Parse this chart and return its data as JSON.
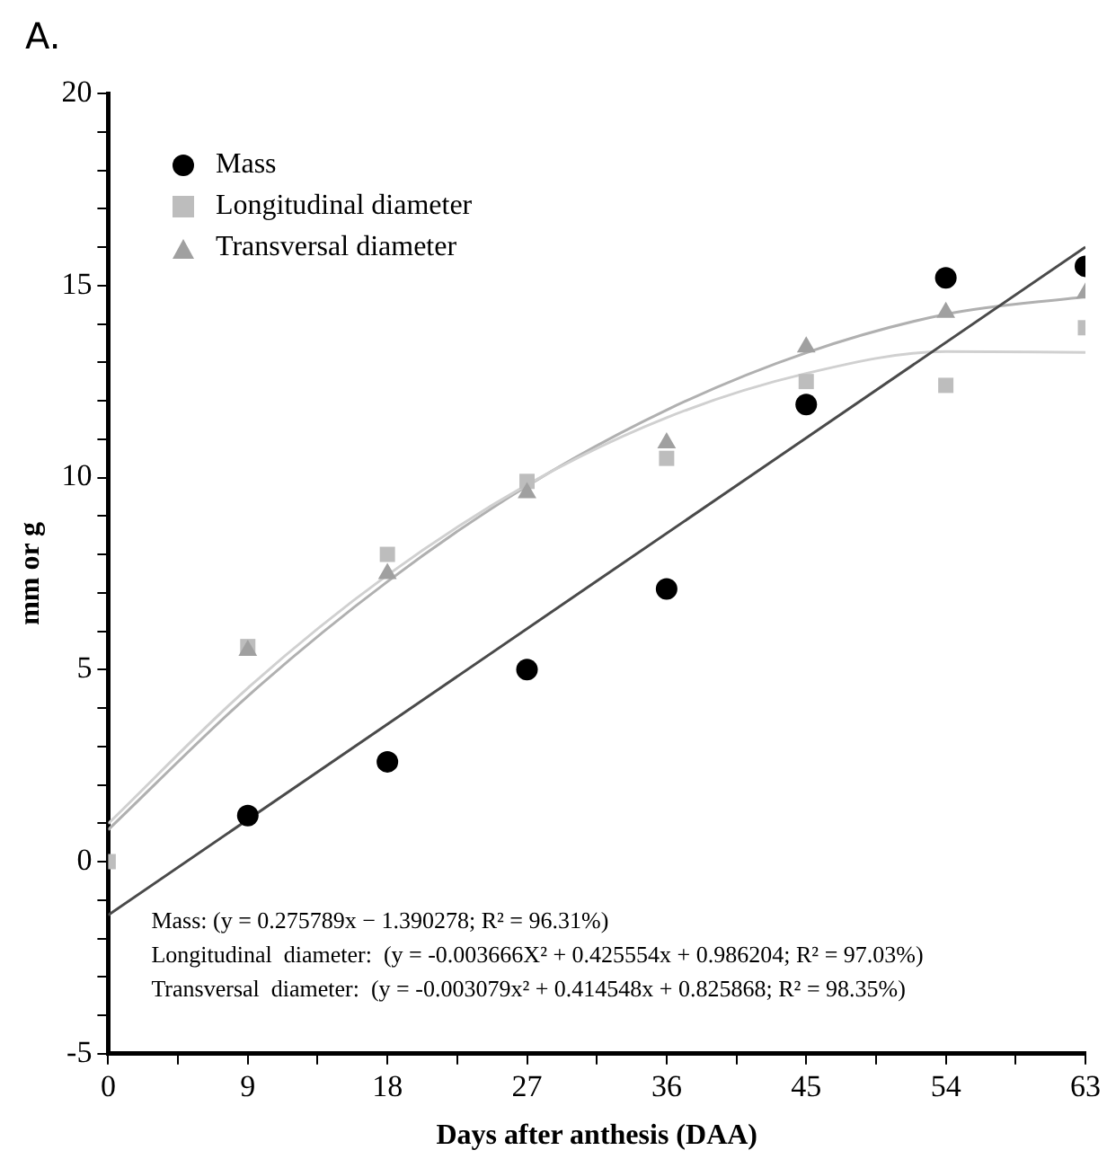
{
  "chart_data": {
    "type": "scatter",
    "title": "A.",
    "xlabel": "Days after anthesis (DAA)",
    "ylabel": "mm or g",
    "x": [
      0,
      9,
      18,
      27,
      36,
      45,
      54,
      63
    ],
    "series": [
      {
        "name": "Mass",
        "type": "scatter",
        "marker": "circle",
        "color": "#000000",
        "values": [
          null,
          1.2,
          2.6,
          5.0,
          7.1,
          11.9,
          15.2,
          15.5
        ]
      },
      {
        "name": "Longitudinal diameter",
        "type": "scatter",
        "marker": "square",
        "color": "#bdbdbd",
        "values": [
          0,
          5.6,
          8.0,
          9.9,
          10.5,
          12.5,
          12.4,
          13.9
        ]
      },
      {
        "name": "Transversal diameter",
        "type": "scatter",
        "marker": "triangle",
        "color": "#a0a0a0",
        "values": [
          null,
          5.5,
          7.5,
          9.6,
          10.9,
          13.4,
          14.3,
          14.8
        ]
      },
      {
        "type": "line",
        "marker": "none",
        "color": "#4a4a4a",
        "x": [
          0,
          63
        ],
        "values": [
          -1.39,
          16.0
        ]
      },
      {
        "type": "line",
        "marker": "none",
        "color": "#d0d0d0",
        "x": [
          0,
          9,
          18,
          27,
          36,
          45,
          54,
          63
        ],
        "values": [
          0.99,
          4.52,
          7.46,
          9.81,
          11.56,
          12.71,
          13.28,
          13.26
        ]
      },
      {
        "type": "line",
        "marker": "none",
        "color": "#b0b0b0",
        "x": [
          0,
          9,
          18,
          27,
          36,
          45,
          54,
          63
        ],
        "values": [
          0.83,
          4.31,
          7.29,
          9.78,
          11.76,
          13.25,
          14.25,
          14.71
        ]
      }
    ],
    "xlim": [
      0,
      63
    ],
    "xticks": [
      0,
      {
        "value": 4.5,
        "label": null
      },
      9,
      {
        "value": 13.5,
        "label": null
      },
      18,
      {
        "value": 22.5,
        "label": null
      },
      27,
      {
        "value": 31.5,
        "label": null
      },
      36,
      {
        "value": 40.5,
        "label": null
      },
      45,
      {
        "value": 49.5,
        "label": null
      },
      54,
      {
        "value": 58.5,
        "label": null
      },
      63
    ],
    "ylim": [
      -5,
      20
    ],
    "yticks": [
      -5,
      {
        "value": -4,
        "label": null
      },
      {
        "value": -3,
        "label": null
      },
      {
        "value": -2,
        "label": null
      },
      {
        "value": -1,
        "label": null
      },
      0,
      {
        "value": 1,
        "label": null
      },
      {
        "value": 2,
        "label": null
      },
      {
        "value": 3,
        "label": null
      },
      {
        "value": 4,
        "label": null
      },
      5,
      {
        "value": 6,
        "label": null
      },
      {
        "value": 7,
        "label": null
      },
      {
        "value": 8,
        "label": null
      },
      {
        "value": 9,
        "label": null
      },
      10,
      {
        "value": 11,
        "label": null
      },
      {
        "value": 12,
        "label": null
      },
      {
        "value": 13,
        "label": null
      },
      {
        "value": 14,
        "label": null
      },
      15,
      {
        "value": 16,
        "label": null
      },
      {
        "value": 17,
        "label": null
      },
      {
        "value": 18,
        "label": null
      },
      {
        "value": 19,
        "label": null
      },
      20
    ],
    "grid": false,
    "legend": "top left",
    "annotations": [
      "Mass: (y = 0.275789x − 1.390278; R² = 96.31%)",
      "Longitudinal  diameter:  (y = -0.003666X² + 0.425554x + 0.986204; R² = 97.03%)",
      "Transversal  diameter:  (y = -0.003079x² + 0.414548x + 0.825868; R² = 98.35%)"
    ]
  }
}
